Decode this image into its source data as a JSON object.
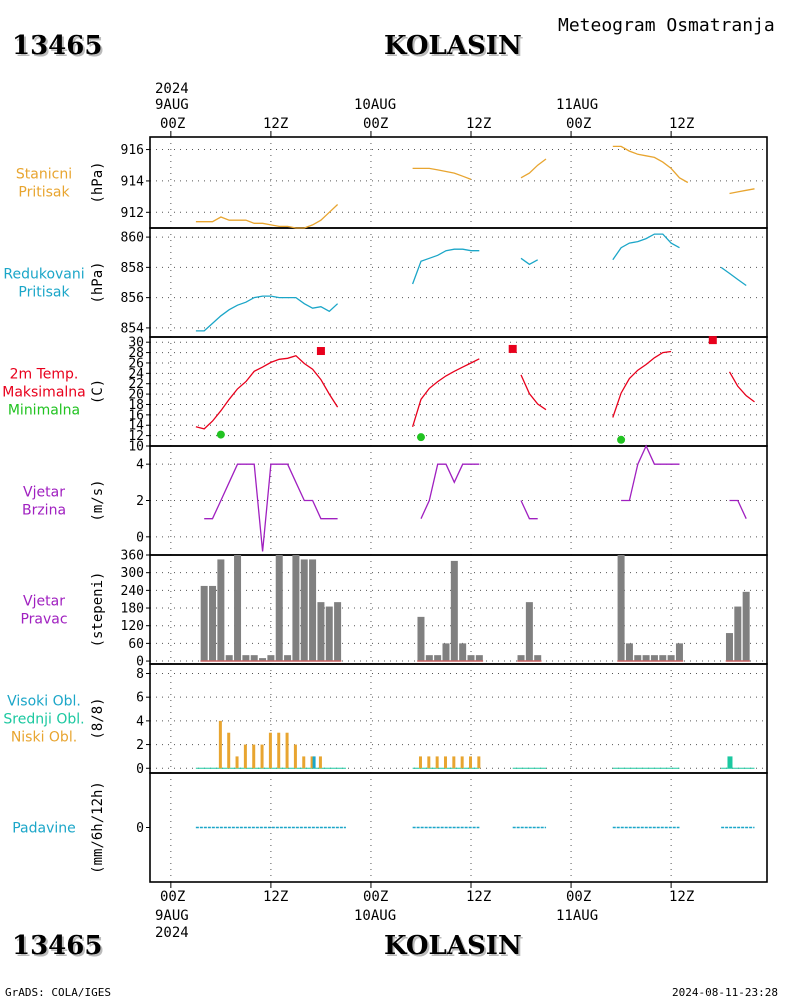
{
  "header": {
    "station_id": "13465",
    "station_name": "KOLASIN",
    "title": "Meteogram Osmatranja"
  },
  "axis": {
    "top": {
      "year": "2024",
      "dates": [
        "9AUG",
        "10AUG",
        "11AUG"
      ],
      "hours": [
        "00Z",
        "12Z",
        "00Z",
        "12Z",
        "00Z",
        "12Z"
      ]
    },
    "bottom": {
      "hours": [
        "00Z",
        "12Z",
        "00Z",
        "12Z",
        "00Z",
        "12Z"
      ],
      "dates": [
        "9AUG",
        "10AUG",
        "11AUG"
      ],
      "year": "2024"
    }
  },
  "footer": {
    "left": "GrADS: COLA/IGES",
    "right": "2024-08-11-23:28"
  },
  "colors": {
    "stanicni": "#e8a530",
    "redukovani": "#1ba6c8",
    "max": "#e8001c",
    "min": "#21c321",
    "wind": "#a020c0",
    "bars": "#808080",
    "baseline": "#c86464",
    "cloud_low": "#e8a530",
    "cloud_mid": "#1bc8a0",
    "cloud_high": "#1ba6c8",
    "precip": "#1ba6c8"
  },
  "panels": [
    {
      "id": "stanicni",
      "labels": [
        "Stanicni",
        "Pritisak"
      ],
      "label_colors": [
        "#e8a530",
        "#e8a530"
      ],
      "unit": "(hPa)",
      "yticks": [
        "916",
        "914",
        "912"
      ]
    },
    {
      "id": "redukovani",
      "labels": [
        "Redukovani",
        "Pritisak"
      ],
      "label_colors": [
        "#1ba6c8",
        "#1ba6c8"
      ],
      "unit": "(hPa)",
      "yticks": [
        "860",
        "858",
        "856",
        "854"
      ]
    },
    {
      "id": "temp",
      "labels": [
        "2m Temp.",
        "Maksimalna",
        "Minimalna"
      ],
      "label_colors": [
        "#e8001c",
        "#e8001c",
        "#21c321"
      ],
      "unit": "(C)",
      "yticks": [
        "30",
        "28",
        "26",
        "24",
        "22",
        "20",
        "18",
        "16",
        "14",
        "12",
        "10"
      ]
    },
    {
      "id": "wind_speed",
      "labels": [
        "Vjetar",
        "Brzina"
      ],
      "label_colors": [
        "#a020c0",
        "#a020c0"
      ],
      "unit": "(m/s)",
      "yticks": [
        "4",
        "2",
        "0"
      ]
    },
    {
      "id": "wind_dir",
      "labels": [
        "Vjetar",
        "Pravac"
      ],
      "label_colors": [
        "#a020c0",
        "#a020c0"
      ],
      "unit": "(stepeni)",
      "yticks": [
        "360",
        "300",
        "240",
        "180",
        "120",
        "60",
        "0"
      ]
    },
    {
      "id": "clouds",
      "labels": [
        "Visoki Obl.",
        "Srednji Obl.",
        "Niski Obl."
      ],
      "label_colors": [
        "#1ba6c8",
        "#1bc8a0",
        "#e8a530"
      ],
      "unit": "(8/8)",
      "yticks": [
        "8",
        "6",
        "4",
        "2",
        "0"
      ]
    },
    {
      "id": "precip",
      "labels": [
        "Padavine"
      ],
      "label_colors": [
        "#1ba6c8"
      ],
      "unit": "(mm/6h/12h)",
      "yticks": [
        "0"
      ]
    }
  ],
  "chart_data": [
    {
      "type": "line",
      "name": "Stanicni Pritisak",
      "ylabel": "(hPa)",
      "ylim": [
        911,
        916.8
      ],
      "x_unit": "hours since 9AUG 00Z",
      "segments": [
        [
          [
            3,
            911.4
          ],
          [
            4,
            911.4
          ],
          [
            5,
            911.4
          ],
          [
            6,
            911.7
          ],
          [
            7,
            911.5
          ],
          [
            8,
            911.5
          ],
          [
            9,
            911.5
          ],
          [
            10,
            911.3
          ],
          [
            11,
            911.3
          ],
          [
            12,
            911.2
          ],
          [
            13,
            911.1
          ],
          [
            14,
            911.1
          ],
          [
            15,
            911.0
          ],
          [
            16,
            911.0
          ],
          [
            17,
            911.2
          ],
          [
            18,
            911.5
          ],
          [
            19,
            912.0
          ],
          [
            20,
            912.5
          ]
        ],
        [
          [
            29,
            914.8
          ],
          [
            30,
            914.8
          ],
          [
            31,
            914.8
          ],
          [
            32,
            914.7
          ],
          [
            33,
            914.6
          ],
          [
            34,
            914.5
          ],
          [
            35,
            914.3
          ],
          [
            36,
            914.1
          ]
        ],
        [
          [
            42,
            914.2
          ],
          [
            43,
            914.5
          ],
          [
            44,
            915.0
          ],
          [
            45,
            915.4
          ]
        ],
        [
          [
            53,
            916.2
          ],
          [
            54,
            916.2
          ],
          [
            55,
            915.9
          ],
          [
            56,
            915.7
          ],
          [
            57,
            915.6
          ],
          [
            58,
            915.5
          ],
          [
            59,
            915.2
          ],
          [
            60,
            914.8
          ],
          [
            61,
            914.2
          ],
          [
            62,
            913.9
          ]
        ],
        [
          [
            67,
            913.2
          ],
          [
            68,
            913.3
          ],
          [
            69,
            913.4
          ],
          [
            70,
            913.5
          ]
        ]
      ]
    },
    {
      "type": "line",
      "name": "Redukovani Pritisak",
      "ylabel": "(hPa)",
      "ylim": [
        853.4,
        860.6
      ],
      "x_unit": "hours since 9AUG 00Z",
      "segments": [
        [
          [
            3,
            853.8
          ],
          [
            4,
            853.8
          ],
          [
            5,
            854.3
          ],
          [
            6,
            854.8
          ],
          [
            7,
            855.2
          ],
          [
            8,
            855.5
          ],
          [
            9,
            855.7
          ],
          [
            10,
            856.0
          ],
          [
            11,
            856.1
          ],
          [
            12,
            856.1
          ],
          [
            13,
            856.0
          ],
          [
            14,
            856.0
          ],
          [
            15,
            856.0
          ],
          [
            16,
            855.6
          ],
          [
            17,
            855.3
          ],
          [
            18,
            855.4
          ],
          [
            19,
            855.1
          ],
          [
            20,
            855.6
          ]
        ],
        [
          [
            29,
            856.9
          ],
          [
            30,
            858.4
          ],
          [
            31,
            858.6
          ],
          [
            32,
            858.8
          ],
          [
            33,
            859.1
          ],
          [
            34,
            859.2
          ],
          [
            35,
            859.2
          ],
          [
            36,
            859.1
          ],
          [
            37,
            859.1
          ]
        ],
        [
          [
            42,
            858.6
          ],
          [
            43,
            858.2
          ],
          [
            44,
            858.5
          ]
        ],
        [
          [
            53,
            858.5
          ],
          [
            54,
            859.3
          ],
          [
            55,
            859.6
          ],
          [
            56,
            859.7
          ],
          [
            57,
            859.9
          ],
          [
            58,
            860.2
          ],
          [
            59,
            860.2
          ],
          [
            60,
            859.6
          ],
          [
            61,
            859.3
          ]
        ],
        [
          [
            66,
            858.0
          ],
          [
            67,
            857.6
          ],
          [
            68,
            857.2
          ],
          [
            69,
            856.8
          ]
        ]
      ]
    },
    {
      "type": "line",
      "name": "2m Temp.",
      "ylabel": "(C)",
      "ylim": [
        10,
        31
      ],
      "x_unit": "hours since 9AUG 00Z",
      "series": [
        {
          "name": "2m Temp.",
          "segments": [
            [
              [
                3,
                13.7
              ],
              [
                4,
                13.3
              ],
              [
                5,
                14.8
              ],
              [
                6,
                16.8
              ],
              [
                7,
                19.0
              ],
              [
                8,
                21.0
              ],
              [
                9,
                22.4
              ],
              [
                10,
                24.4
              ],
              [
                11,
                25.2
              ],
              [
                12,
                26.1
              ],
              [
                13,
                26.7
              ],
              [
                14,
                26.9
              ],
              [
                15,
                27.4
              ],
              [
                16,
                25.9
              ],
              [
                17,
                24.8
              ],
              [
                18,
                22.8
              ],
              [
                19,
                20.0
              ],
              [
                20,
                17.5
              ]
            ],
            [
              [
                29,
                13.7
              ],
              [
                30,
                19.0
              ],
              [
                31,
                21.1
              ],
              [
                32,
                22.4
              ],
              [
                33,
                23.5
              ],
              [
                34,
                24.4
              ],
              [
                35,
                25.2
              ],
              [
                36,
                26.0
              ],
              [
                37,
                26.8
              ]
            ],
            [
              [
                42,
                23.7
              ],
              [
                43,
                20.1
              ],
              [
                44,
                18.1
              ],
              [
                45,
                17.0
              ]
            ],
            [
              [
                53,
                15.5
              ],
              [
                54,
                20.2
              ],
              [
                55,
                23.0
              ],
              [
                56,
                24.6
              ],
              [
                57,
                25.7
              ],
              [
                58,
                27.0
              ],
              [
                59,
                28.0
              ],
              [
                60,
                28.2
              ]
            ],
            [
              [
                67,
                24.3
              ],
              [
                68,
                21.5
              ],
              [
                69,
                19.7
              ],
              [
                70,
                18.5
              ]
            ]
          ]
        },
        {
          "name": "Maksimalna",
          "points": [
            [
              18,
              28.3
            ],
            [
              41,
              28.7
            ],
            [
              65,
              30.4
            ]
          ]
        },
        {
          "name": "Minimalna",
          "points": [
            [
              6,
              12.2
            ],
            [
              30,
              11.7
            ],
            [
              54,
              11.2
            ]
          ]
        }
      ]
    },
    {
      "type": "line",
      "name": "Vjetar Brzina",
      "ylabel": "(m/s)",
      "ylim": [
        -1,
        5
      ],
      "x_unit": "hours since 9AUG 00Z",
      "segments": [
        [
          [
            4,
            1
          ],
          [
            5,
            1
          ],
          [
            6,
            2
          ],
          [
            7,
            3
          ],
          [
            8,
            4
          ],
          [
            9,
            4
          ],
          [
            10,
            4
          ],
          [
            11,
            -0.8
          ],
          [
            12,
            4
          ],
          [
            13,
            4
          ],
          [
            14,
            4
          ],
          [
            15,
            3
          ],
          [
            16,
            2
          ],
          [
            17,
            2
          ],
          [
            18,
            1
          ],
          [
            19,
            1
          ],
          [
            20,
            1
          ]
        ],
        [
          [
            30,
            1
          ],
          [
            31,
            2
          ],
          [
            32,
            4
          ],
          [
            33,
            4
          ],
          [
            34,
            3
          ],
          [
            35,
            4
          ],
          [
            36,
            4
          ],
          [
            37,
            4
          ]
        ],
        [
          [
            42,
            2
          ],
          [
            43,
            1
          ],
          [
            44,
            1
          ]
        ],
        [
          [
            54,
            2
          ],
          [
            55,
            2
          ],
          [
            56,
            4
          ],
          [
            57,
            5
          ],
          [
            58,
            4
          ],
          [
            59,
            4
          ],
          [
            60,
            4
          ],
          [
            61,
            4
          ]
        ],
        [
          [
            67,
            2
          ],
          [
            68,
            2
          ],
          [
            69,
            1
          ]
        ]
      ]
    },
    {
      "type": "bar",
      "name": "Vjetar Pravac",
      "ylabel": "(stepeni)",
      "ylim": [
        -10,
        360
      ],
      "x_unit": "hours since 9AUG 00Z",
      "bars": [
        [
          4,
          255
        ],
        [
          5,
          255
        ],
        [
          6,
          345
        ],
        [
          7,
          20
        ],
        [
          8,
          360
        ],
        [
          9,
          20
        ],
        [
          10,
          20
        ],
        [
          11,
          10
        ],
        [
          12,
          20
        ],
        [
          13,
          360
        ],
        [
          14,
          20
        ],
        [
          15,
          360
        ],
        [
          16,
          345
        ],
        [
          17,
          345
        ],
        [
          18,
          200
        ],
        [
          19,
          185
        ],
        [
          20,
          200
        ],
        [
          30,
          150
        ],
        [
          31,
          20
        ],
        [
          32,
          20
        ],
        [
          33,
          60
        ],
        [
          34,
          340
        ],
        [
          35,
          60
        ],
        [
          36,
          20
        ],
        [
          37,
          20
        ],
        [
          42,
          20
        ],
        [
          43,
          200
        ],
        [
          44,
          20
        ],
        [
          54,
          360
        ],
        [
          55,
          60
        ],
        [
          56,
          20
        ],
        [
          57,
          20
        ],
        [
          58,
          20
        ],
        [
          59,
          20
        ],
        [
          60,
          20
        ],
        [
          61,
          60
        ],
        [
          67,
          95
        ],
        [
          68,
          185
        ],
        [
          69,
          235
        ]
      ]
    },
    {
      "type": "bar",
      "name": "Oblacnost",
      "ylabel": "(8/8)",
      "ylim": [
        -0.4,
        8.8
      ],
      "x_unit": "hours since 9AUG 00Z",
      "series": [
        {
          "name": "Niski Obl.",
          "bars": [
            [
              6,
              4
            ],
            [
              7,
              3
            ],
            [
              8,
              1
            ],
            [
              9,
              2
            ],
            [
              10,
              2
            ],
            [
              11,
              2
            ],
            [
              12,
              3
            ],
            [
              13,
              3
            ],
            [
              14,
              3
            ],
            [
              15,
              2
            ],
            [
              16,
              1
            ],
            [
              17,
              1
            ],
            [
              18,
              1
            ],
            [
              30,
              1
            ],
            [
              31,
              1
            ],
            [
              32,
              1
            ],
            [
              33,
              1
            ],
            [
              34,
              1
            ],
            [
              35,
              1
            ],
            [
              36,
              1
            ],
            [
              37,
              1
            ]
          ]
        },
        {
          "name": "Srednji Obl.",
          "bars": [
            [
              67,
              1
            ]
          ]
        },
        {
          "name": "Visoki Obl.",
          "bars": [
            [
              17,
              1
            ]
          ]
        }
      ]
    },
    {
      "type": "bar",
      "name": "Padavine",
      "ylabel": "(mm/6h/12h)",
      "ylim": [
        -3,
        3
      ],
      "x_unit": "hours since 9AUG 00Z",
      "segments": [
        [
          3,
          21
        ],
        [
          29,
          37
        ],
        [
          41,
          45
        ],
        [
          53,
          61
        ],
        [
          66,
          70
        ]
      ],
      "values": 0
    }
  ]
}
